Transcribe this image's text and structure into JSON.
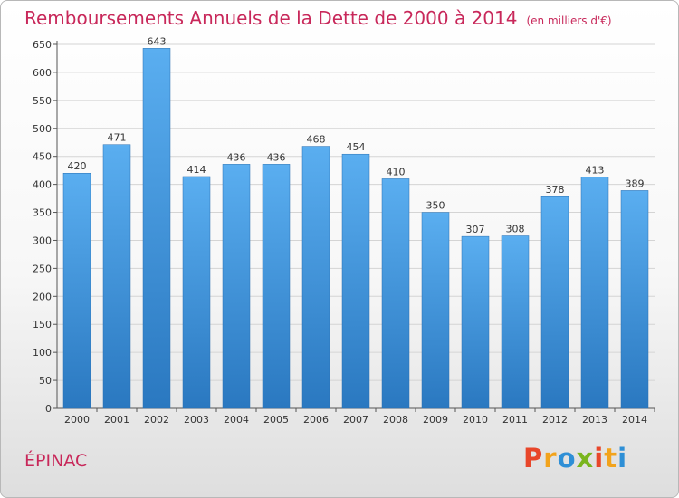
{
  "chart_data": {
    "type": "bar",
    "title": "Remboursements Annuels de la Dette de 2000 à 2014",
    "unit_note": "(en milliers d'€)",
    "xlabel": "",
    "ylabel": "",
    "categories": [
      "2000",
      "2001",
      "2002",
      "2003",
      "2004",
      "2005",
      "2006",
      "2007",
      "2008",
      "2009",
      "2010",
      "2011",
      "2012",
      "2013",
      "2014"
    ],
    "values": [
      420,
      471,
      643,
      414,
      436,
      436,
      468,
      454,
      410,
      350,
      307,
      308,
      378,
      413,
      389
    ],
    "ylim": [
      0,
      650
    ],
    "yticks": [
      0,
      50,
      100,
      150,
      200,
      250,
      300,
      350,
      400,
      450,
      500,
      550,
      600,
      650
    ],
    "grid": true,
    "bar_color": "#3d8fd6"
  },
  "footer": {
    "commune": "ÉPINAC",
    "logo_letters": [
      "P",
      "r",
      "o",
      "x",
      "i",
      "t",
      "i"
    ],
    "logo_colors": [
      "#e8462a",
      "#f2a31c",
      "#2e8fd6",
      "#7ab51d",
      "#e8462a",
      "#f2a31c",
      "#2e8fd6"
    ]
  }
}
